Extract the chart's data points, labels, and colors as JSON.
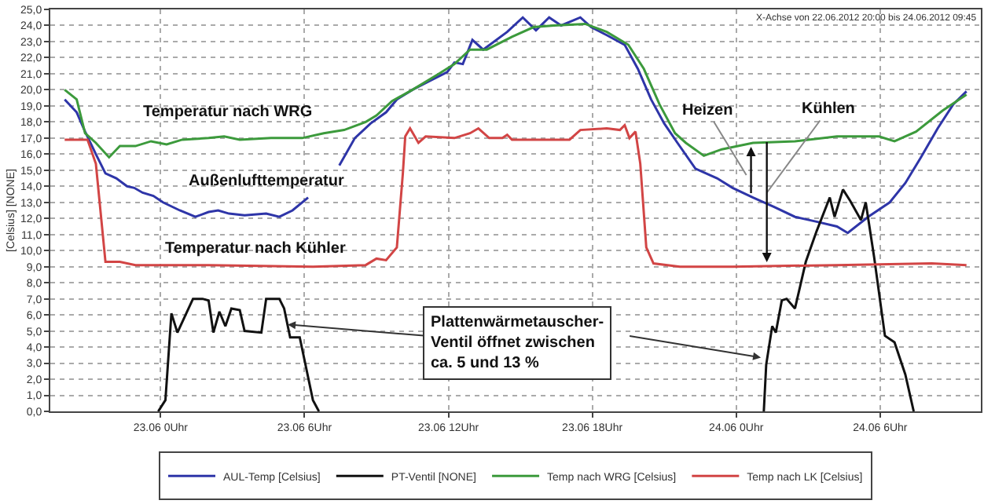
{
  "chart_data": {
    "type": "line",
    "ylabel": "[Celsius] [NONE]",
    "xlim": [
      "2012-06-22T19:24",
      "2012-06-24T10:12"
    ],
    "xticks": [
      {
        "value": "2012-06-23T00:00",
        "label": "23.06 0Uhr"
      },
      {
        "value": "2012-06-23T06:00",
        "label": "23.06 6Uhr"
      },
      {
        "value": "2012-06-23T12:00",
        "label": "23.06 12Uhr"
      },
      {
        "value": "2012-06-23T18:00",
        "label": "23.06 18Uhr"
      },
      {
        "value": "2012-06-24T00:00",
        "label": "24.06 0Uhr"
      },
      {
        "value": "2012-06-24T06:00",
        "label": "24.06 6Uhr"
      }
    ],
    "ylim": [
      0,
      25
    ],
    "yticks": [
      {
        "value": 0,
        "label": "0,0"
      },
      {
        "value": 1,
        "label": "1,0"
      },
      {
        "value": 2,
        "label": "2,0"
      },
      {
        "value": 3,
        "label": "3,0"
      },
      {
        "value": 4,
        "label": "4,0"
      },
      {
        "value": 5,
        "label": "5,0"
      },
      {
        "value": 6,
        "label": "6,0"
      },
      {
        "value": 7,
        "label": "7,0"
      },
      {
        "value": 8,
        "label": "8,0"
      },
      {
        "value": 9,
        "label": "9,0"
      },
      {
        "value": 10,
        "label": "10,0"
      },
      {
        "value": 11,
        "label": "11,0"
      },
      {
        "value": 12,
        "label": "12,0"
      },
      {
        "value": 13,
        "label": "13,0"
      },
      {
        "value": 14,
        "label": "14,0"
      },
      {
        "value": 15,
        "label": "15,0"
      },
      {
        "value": 16,
        "label": "16,0"
      },
      {
        "value": 17,
        "label": "17,0"
      },
      {
        "value": 18,
        "label": "18,0"
      },
      {
        "value": 19,
        "label": "19,0"
      },
      {
        "value": 20,
        "label": "20,0"
      },
      {
        "value": 21,
        "label": "21,0"
      },
      {
        "value": 22,
        "label": "22,0"
      },
      {
        "value": 23,
        "label": "23,0"
      },
      {
        "value": 24,
        "label": "24,0"
      },
      {
        "value": 25,
        "label": "25,0"
      }
    ],
    "grid": true,
    "legend": "bottom",
    "marker": "none",
    "line_style": "solid",
    "series": [
      {
        "name": "AUL-Temp [Celsius]",
        "color": "#2e35a8",
        "x": [
          "2012-06-22T20:00",
          "2012-06-22T20:30",
          "2012-06-22T20:51",
          "2012-06-22T21:18",
          "2012-06-22T21:42",
          "2012-06-22T22:09",
          "2012-06-22T22:36",
          "2012-06-22T22:54",
          "2012-06-22T23:15",
          "2012-06-22T23:42",
          "2012-06-23T00:06",
          "2012-06-23T00:48",
          "2012-06-23T01:27",
          "2012-06-23T02:00",
          "2012-06-23T02:24",
          "2012-06-23T02:51",
          "2012-06-23T03:30",
          "2012-06-23T04:24",
          "2012-06-23T04:57",
          "2012-06-23T05:30",
          "2012-06-23T06:09",
          "2012-06-23T06:48",
          "2012-06-23T07:27",
          "2012-06-23T08:06",
          "2012-06-23T08:45",
          "2012-06-23T09:24",
          "2012-06-23T09:51",
          "2012-06-23T10:30",
          "2012-06-23T11:09",
          "2012-06-23T11:57",
          "2012-06-23T12:15",
          "2012-06-23T12:36",
          "2012-06-23T13:00",
          "2012-06-23T13:27",
          "2012-06-23T14:27",
          "2012-06-23T15:06",
          "2012-06-23T15:39",
          "2012-06-23T16:12",
          "2012-06-23T16:42",
          "2012-06-23T17:30",
          "2012-06-23T17:57",
          "2012-06-23T18:36",
          "2012-06-23T19:21",
          "2012-06-23T19:54",
          "2012-06-23T20:27",
          "2012-06-23T21:00",
          "2012-06-23T21:33",
          "2012-06-23T22:18",
          "2012-06-23T23:12",
          "2012-06-23T23:51",
          "2012-06-24T00:42",
          "2012-06-24T01:36",
          "2012-06-24T02:27",
          "2012-06-24T03:21",
          "2012-06-24T04:12",
          "2012-06-24T04:39",
          "2012-06-24T05:30",
          "2012-06-24T06:24",
          "2012-06-24T07:03",
          "2012-06-24T07:42",
          "2012-06-24T08:24",
          "2012-06-24T09:03",
          "2012-06-24T09:36"
        ],
        "values": [
          19.4,
          18.6,
          17.4,
          16.0,
          14.8,
          14.5,
          14.0,
          13.9,
          13.6,
          13.4,
          13.0,
          12.5,
          12.1,
          12.4,
          12.5,
          12.3,
          12.2,
          12.3,
          12.1,
          12.5,
          13.3,
          null,
          15.3,
          17.0,
          17.9,
          18.6,
          19.4,
          20.0,
          20.5,
          21.1,
          21.7,
          21.6,
          23.1,
          22.5,
          23.6,
          24.5,
          23.7,
          24.5,
          24.0,
          24.5,
          23.9,
          23.4,
          22.8,
          21.3,
          19.4,
          17.9,
          16.7,
          15.1,
          14.5,
          13.9,
          13.3,
          12.7,
          12.1,
          11.8,
          11.5,
          11.1,
          12.1,
          13.0,
          14.2,
          15.8,
          17.6,
          19.1,
          19.9
        ]
      },
      {
        "name": "PT-Ventil [NONE]",
        "color": "#111111",
        "x": [
          "2012-06-22T23:54",
          "2012-06-23T00:12",
          "2012-06-23T00:27",
          "2012-06-23T00:42",
          "2012-06-23T01:06",
          "2012-06-23T01:21",
          "2012-06-23T01:45",
          "2012-06-23T02:00",
          "2012-06-23T02:12",
          "2012-06-23T02:27",
          "2012-06-23T02:42",
          "2012-06-23T02:57",
          "2012-06-23T03:18",
          "2012-06-23T03:30",
          "2012-06-23T04:12",
          "2012-06-23T04:24",
          "2012-06-23T04:57",
          "2012-06-23T05:09",
          "2012-06-23T05:24",
          "2012-06-23T05:48",
          "2012-06-23T06:21",
          "2012-06-23T06:36",
          "2012-06-23T15:00",
          "2012-06-24T01:09",
          "2012-06-24T01:15",
          "2012-06-24T01:30",
          "2012-06-24T01:39",
          "2012-06-24T01:54",
          "2012-06-24T02:06",
          "2012-06-24T02:27",
          "2012-06-24T02:54",
          "2012-06-24T03:21",
          "2012-06-24T03:54",
          "2012-06-24T04:06",
          "2012-06-24T04:27",
          "2012-06-24T04:45",
          "2012-06-24T05:12",
          "2012-06-24T05:24",
          "2012-06-24T05:45",
          "2012-06-24T06:12",
          "2012-06-24T06:36",
          "2012-06-24T07:03",
          "2012-06-24T07:24"
        ],
        "values": [
          0,
          0.7,
          6.1,
          4.9,
          6.2,
          7.0,
          7.0,
          6.9,
          4.9,
          6.2,
          5.3,
          6.4,
          6.3,
          5.0,
          4.9,
          7.0,
          7.0,
          6.4,
          4.6,
          4.6,
          0.7,
          0,
          null,
          0,
          2.9,
          5.3,
          4.9,
          6.9,
          7.0,
          6.4,
          9.3,
          11.2,
          13.3,
          12.1,
          13.8,
          13.1,
          11.9,
          13.0,
          9.6,
          4.7,
          4.3,
          2.3,
          0
        ]
      },
      {
        "name": "Temp nach WRG [Celsius]",
        "color": "#3c9a3c",
        "x": [
          "2012-06-22T20:00",
          "2012-06-22T20:30",
          "2012-06-22T20:51",
          "2012-06-22T21:18",
          "2012-06-22T21:51",
          "2012-06-22T22:18",
          "2012-06-22T22:57",
          "2012-06-22T23:36",
          "2012-06-23T00:15",
          "2012-06-23T00:54",
          "2012-06-23T02:00",
          "2012-06-23T02:39",
          "2012-06-23T03:18",
          "2012-06-23T04:36",
          "2012-06-23T05:54",
          "2012-06-23T06:48",
          "2012-06-23T07:39",
          "2012-06-23T08:33",
          "2012-06-23T09:00",
          "2012-06-23T09:39",
          "2012-06-23T10:30",
          "2012-06-23T11:36",
          "2012-06-23T12:15",
          "2012-06-23T12:54",
          "2012-06-23T13:36",
          "2012-06-23T14:39",
          "2012-06-23T15:33",
          "2012-06-23T16:24",
          "2012-06-23T17:42",
          "2012-06-23T18:36",
          "2012-06-23T19:30",
          "2012-06-23T20:09",
          "2012-06-23T20:48",
          "2012-06-23T21:27",
          "2012-06-23T21:54",
          "2012-06-23T22:39",
          "2012-06-23T23:24",
          "2012-06-24T00:42",
          "2012-06-24T02:27",
          "2012-06-24T04:12",
          "2012-06-24T05:57",
          "2012-06-24T06:36",
          "2012-06-24T07:30",
          "2012-06-24T08:36",
          "2012-06-24T09:36"
        ],
        "values": [
          20.0,
          19.4,
          17.3,
          16.7,
          15.8,
          16.5,
          16.5,
          16.8,
          16.6,
          16.9,
          17.0,
          17.1,
          16.9,
          17.0,
          17.0,
          17.3,
          17.5,
          18.0,
          18.4,
          19.3,
          20.0,
          21.0,
          21.6,
          22.5,
          22.5,
          23.3,
          23.9,
          24.0,
          24.1,
          23.6,
          22.8,
          21.3,
          19.1,
          17.3,
          16.7,
          15.9,
          16.3,
          16.7,
          16.8,
          17.1,
          17.1,
          16.8,
          17.4,
          18.7,
          19.7
        ]
      },
      {
        "name": "Temp nach LK [Celsius]",
        "color": "#d24545",
        "x": [
          "2012-06-22T20:00",
          "2012-06-22T20:57",
          "2012-06-22T21:18",
          "2012-06-22T21:42",
          "2012-06-22T22:18",
          "2012-06-22T22:57",
          "2012-06-23T02:00",
          "2012-06-23T06:21",
          "2012-06-23T08:33",
          "2012-06-23T09:00",
          "2012-06-23T09:24",
          "2012-06-23T09:51",
          "2012-06-23T10:06",
          "2012-06-23T10:12",
          "2012-06-23T10:24",
          "2012-06-23T10:45",
          "2012-06-23T11:03",
          "2012-06-23T12:15",
          "2012-06-23T12:54",
          "2012-06-23T13:15",
          "2012-06-23T13:42",
          "2012-06-23T14:15",
          "2012-06-23T14:27",
          "2012-06-23T14:39",
          "2012-06-23T17:03",
          "2012-06-23T17:30",
          "2012-06-23T18:36",
          "2012-06-23T19:09",
          "2012-06-23T19:21",
          "2012-06-23T19:33",
          "2012-06-23T19:48",
          "2012-06-23T20:00",
          "2012-06-23T20:15",
          "2012-06-23T20:33",
          "2012-06-23T21:39",
          "2012-06-23T23:51",
          "2012-06-24T04:12",
          "2012-06-24T08:09",
          "2012-06-24T09:36"
        ],
        "values": [
          16.9,
          16.9,
          15.4,
          9.3,
          9.3,
          9.1,
          9.1,
          9.0,
          9.1,
          9.5,
          9.4,
          10.2,
          14.8,
          17.1,
          17.6,
          16.7,
          17.1,
          17.0,
          17.3,
          17.6,
          17.0,
          17.0,
          17.2,
          16.9,
          16.9,
          17.5,
          17.6,
          17.5,
          17.8,
          17.0,
          17.4,
          15.4,
          10.2,
          9.2,
          9.0,
          9.0,
          9.1,
          9.2,
          9.1
        ]
      }
    ],
    "annotations": [
      "Temperatur nach WRG",
      "Außenlufttemperatur",
      "Temperatur nach Kühler",
      {
        "text": "Plattenwärmetauscher-\nVentil öffnet zwischen\nca. 5 und 13 %",
        "x": "2012-06-23T05:18",
        "y": 5.4
      },
      "Heizen",
      "Kühlen",
      "X-Achse von 22.06.2012 20:00 bis 24.06.2012 09:45"
    ]
  }
}
